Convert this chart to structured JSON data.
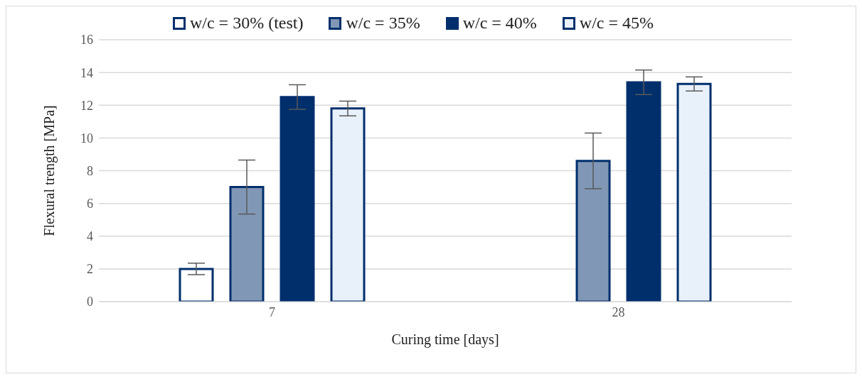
{
  "chart_data": {
    "type": "bar",
    "xlabel": "Curing time [days]",
    "ylabel": "Flexural trength [MPa]",
    "categories": [
      "7",
      "28"
    ],
    "series": [
      {
        "name": "w/c = 30% (test)",
        "color": "#ffffff",
        "values": [
          2.0,
          null
        ],
        "errors": [
          0.35,
          null
        ]
      },
      {
        "name": "w/c = 35%",
        "color": "#8097b5",
        "values": [
          7.0,
          8.6
        ],
        "errors": [
          1.65,
          1.7
        ]
      },
      {
        "name": "w/c = 40%",
        "color": "#002f6c",
        "values": [
          12.5,
          13.4
        ],
        "errors": [
          0.75,
          0.75
        ]
      },
      {
        "name": "w/c = 45%",
        "color": "#e8f0f9",
        "values": [
          11.8,
          13.3
        ],
        "errors": [
          0.45,
          0.43
        ]
      }
    ],
    "ylim": [
      0,
      16
    ],
    "yticks": [
      0,
      2,
      4,
      6,
      8,
      10,
      12,
      14,
      16
    ],
    "grid": "y",
    "legend": "top"
  }
}
